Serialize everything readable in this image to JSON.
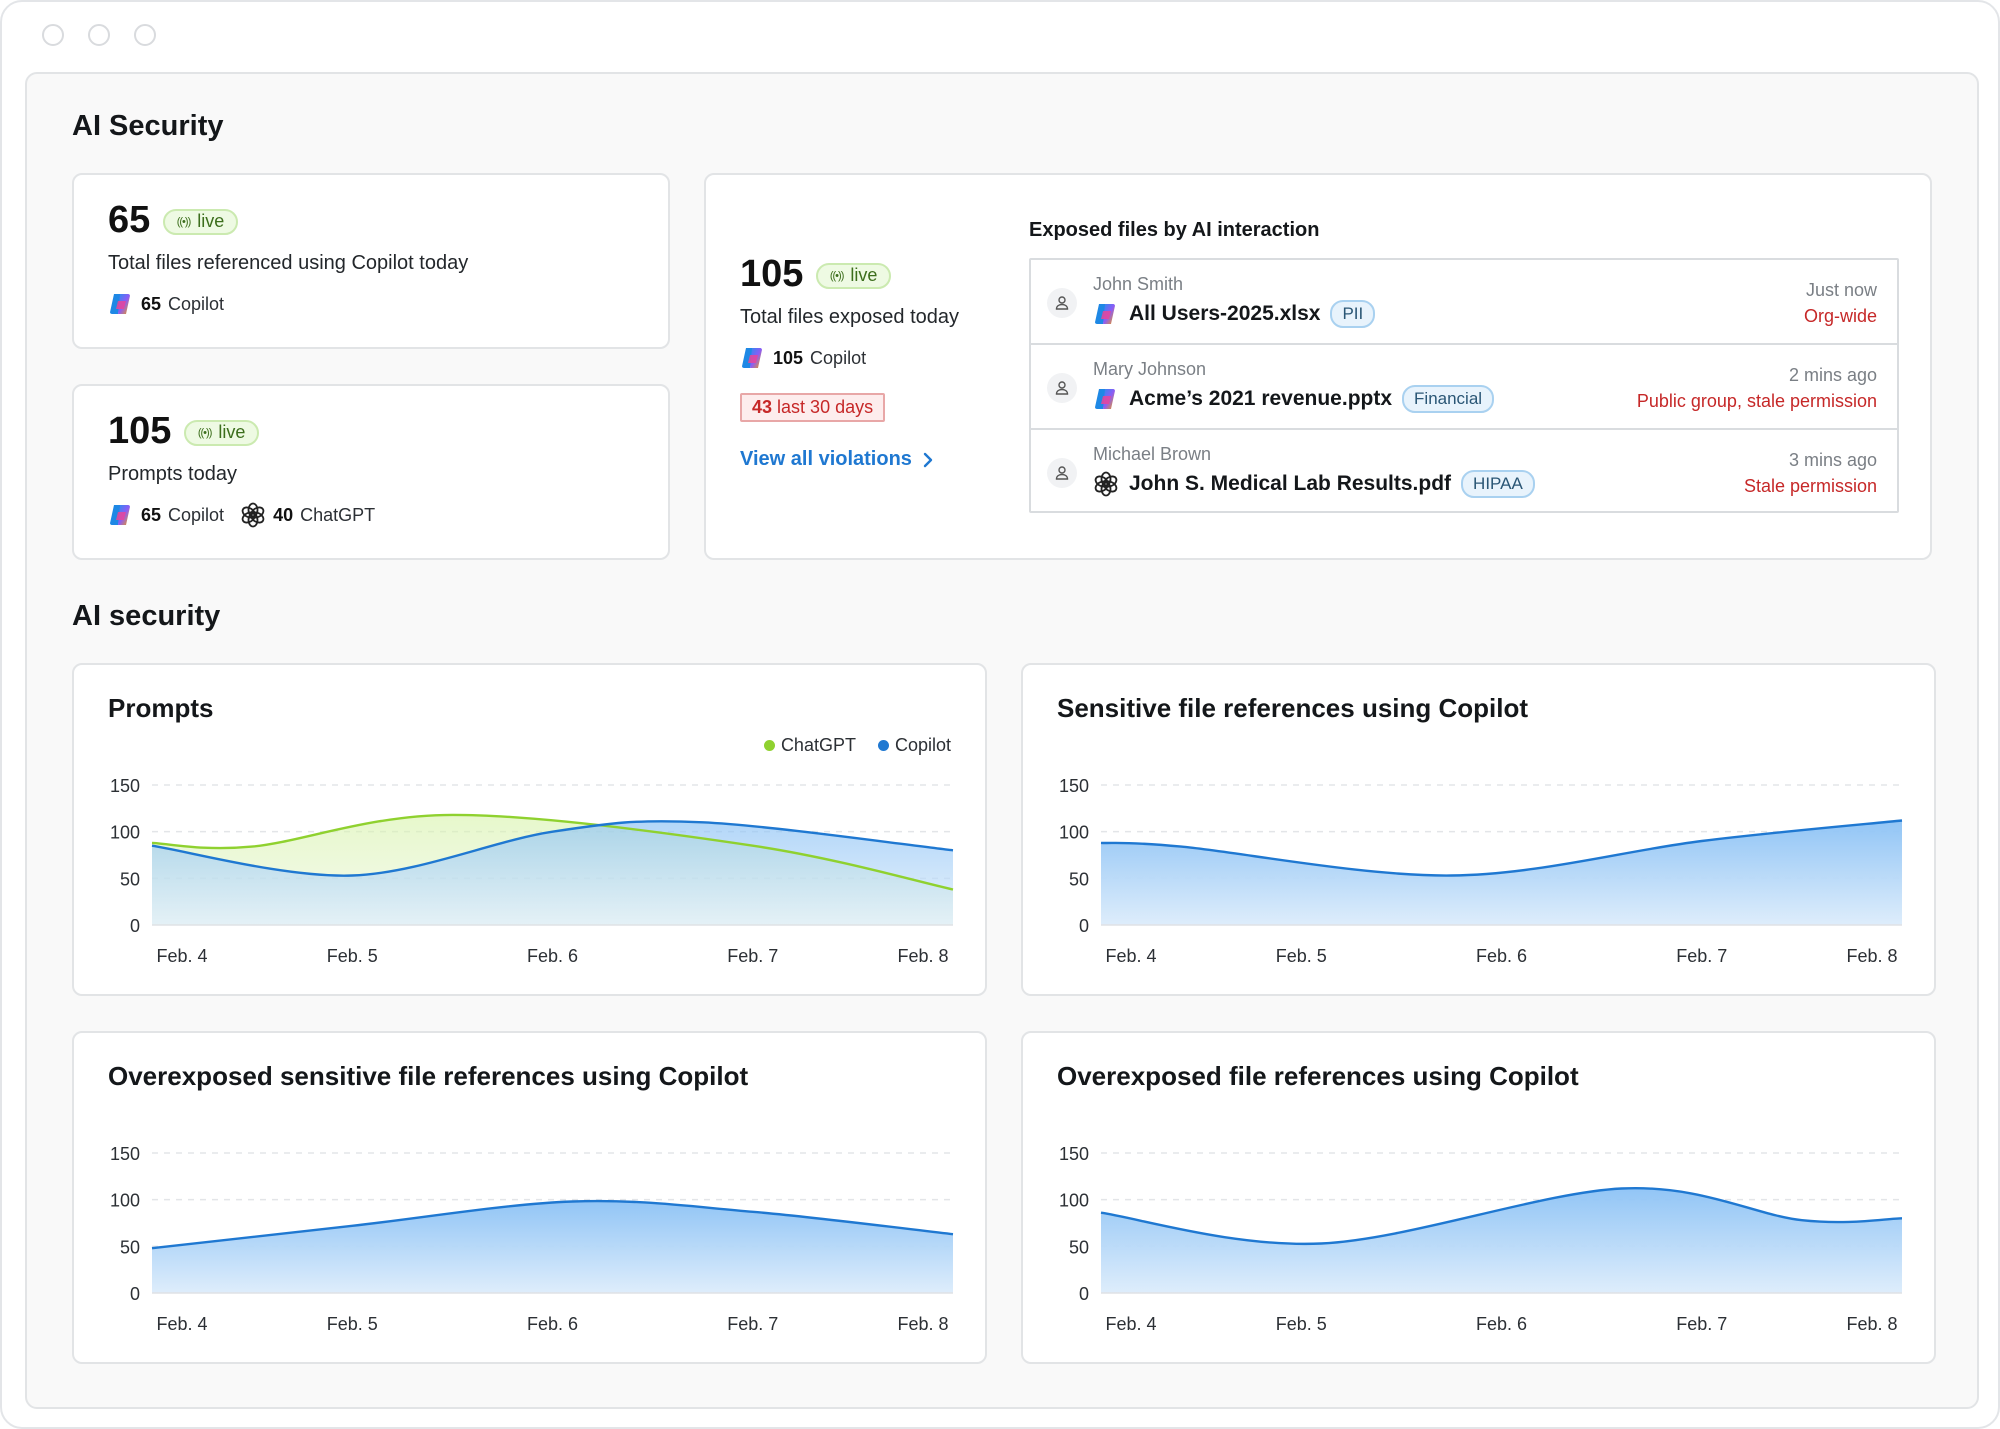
{
  "section1_title": "AI Security",
  "section2_title": "AI security",
  "live_label": "live",
  "card_copilot_files": {
    "value": "65",
    "description": "Total files referenced using Copilot today",
    "copilot_count": "65",
    "copilot_label": "Copilot"
  },
  "card_prompts": {
    "value": "105",
    "description": "Prompts today",
    "copilot_count": "65",
    "copilot_label": "Copilot",
    "chatgpt_count": "40",
    "chatgpt_label": "ChatGPT"
  },
  "card_exposed": {
    "value": "105",
    "description": "Total files exposed today",
    "copilot_count": "105",
    "copilot_label": "Copilot",
    "violation_count": "43",
    "violation_label": "last 30 days",
    "view_all": "View all violations"
  },
  "exposed_files": {
    "title": "Exposed files by AI interaction",
    "rows": [
      {
        "user": "John Smith",
        "file": "All Users-2025.xlsx",
        "tag": "PII",
        "time": "Just now",
        "exposure": "Org-wide",
        "app_icon": "copilot-icon"
      },
      {
        "user": "Mary Johnson",
        "file": "Acme’s 2021 revenue.pptx",
        "tag": "Financial",
        "time": "2 mins ago",
        "exposure": "Public group, stale permission",
        "app_icon": "copilot-icon"
      },
      {
        "user": "Michael Brown",
        "file": "John S. Medical Lab Results.pdf",
        "tag": "HIPAA",
        "time": "3 mins ago",
        "exposure": "Stale permission",
        "app_icon": "chatgpt-icon"
      }
    ]
  },
  "colors": {
    "chatgpt": "#8fd12f",
    "copilot": "#1f78d1",
    "violation": "#c62828",
    "link": "#1f78d1"
  },
  "chart_data": [
    {
      "type": "area",
      "title": "Prompts",
      "categories": [
        "Feb. 4",
        "Feb. 5",
        "Feb. 6",
        "Feb. 7",
        "Feb. 8"
      ],
      "yticks": [
        0,
        50,
        100,
        150
      ],
      "ylim": [
        0,
        150
      ],
      "legend": "top-right",
      "series": [
        {
          "name": "ChatGPT",
          "color": "#8fd12f",
          "x": [
            0,
            0.5,
            1.5,
            3,
            4
          ],
          "values": [
            88,
            84,
            118,
            85,
            38
          ]
        },
        {
          "name": "Copilot",
          "color": "#1f78d1",
          "x": [
            0,
            1,
            2,
            2.75,
            4
          ],
          "values": [
            85,
            53,
            100,
            110,
            80
          ]
        }
      ]
    },
    {
      "type": "area",
      "title": "Sensitive file references using Copilot",
      "categories": [
        "Feb. 4",
        "Feb. 5",
        "Feb. 6",
        "Feb. 7",
        "Feb. 8"
      ],
      "yticks": [
        0,
        50,
        100,
        150
      ],
      "ylim": [
        0,
        150
      ],
      "series": [
        {
          "color": "#1f78d1",
          "x": [
            0,
            0.4,
            1.75,
            3,
            4
          ],
          "values": [
            88,
            84,
            53,
            90,
            112
          ]
        }
      ]
    },
    {
      "type": "area",
      "title": "Overexposed sensitive file references using Copilot",
      "categories": [
        "Feb. 4",
        "Feb. 5",
        "Feb. 6",
        "Feb. 7",
        "Feb. 8"
      ],
      "yticks": [
        0,
        50,
        100,
        150
      ],
      "ylim": [
        0,
        150
      ],
      "series": [
        {
          "color": "#1f78d1",
          "x": [
            0,
            1,
            2.1,
            3,
            4
          ],
          "values": [
            48,
            72,
            98,
            87,
            63
          ]
        }
      ]
    },
    {
      "type": "area",
      "title": "Overexposed file references using Copilot",
      "categories": [
        "Feb. 4",
        "Feb. 5",
        "Feb. 6",
        "Feb. 7",
        "Feb. 8"
      ],
      "yticks": [
        0,
        50,
        100,
        150
      ],
      "ylim": [
        0,
        150
      ],
      "series": [
        {
          "color": "#1f78d1",
          "x": [
            0,
            1.1,
            2.6,
            3.5,
            4
          ],
          "values": [
            86,
            53,
            112,
            78,
            80
          ]
        }
      ]
    }
  ]
}
